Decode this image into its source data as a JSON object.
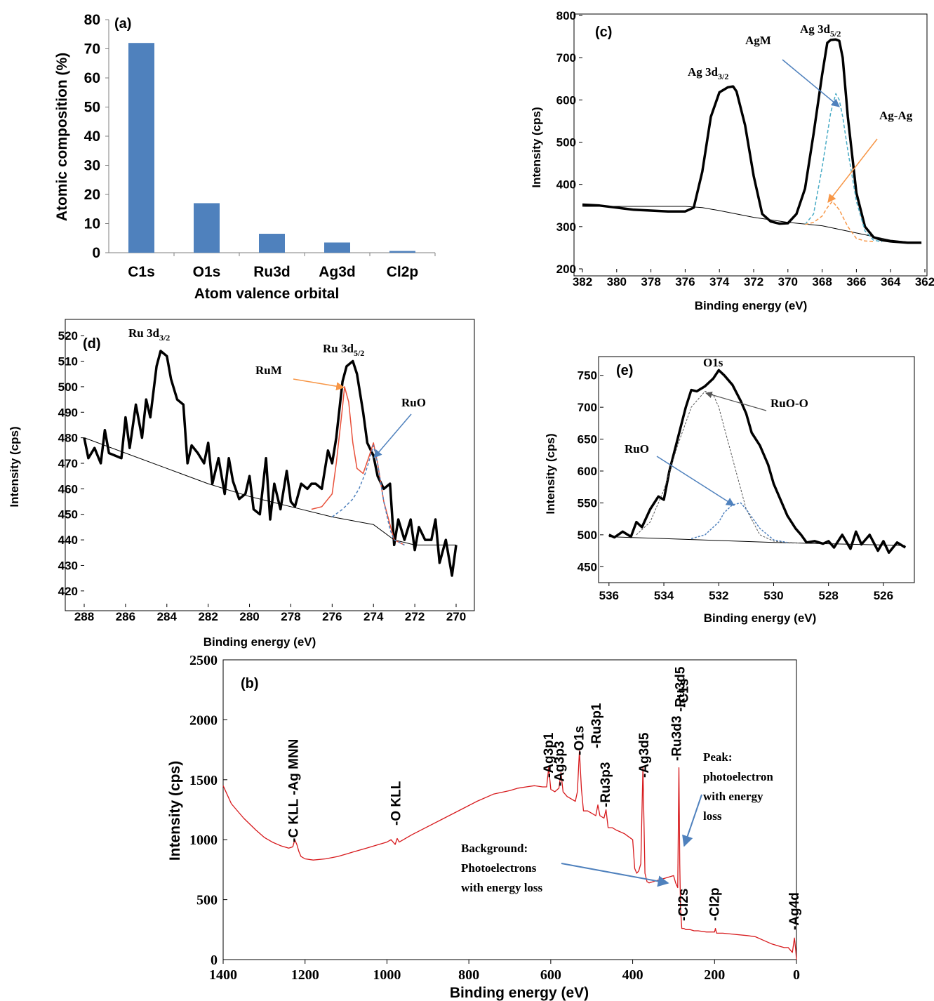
{
  "chart_data": [
    {
      "panel": "(a)",
      "type": "bar",
      "categories": [
        "C1s",
        "O1s",
        "Ru3d",
        "Ag3d",
        "Cl2p"
      ],
      "values": [
        72,
        17,
        6.5,
        3.5,
        0.6
      ],
      "xlabel": "Atom valence orbital",
      "ylabel": "Atomic composition (%)",
      "ylim": [
        0,
        80
      ],
      "yticks": [
        "0",
        "10",
        "20",
        "30",
        "40",
        "50",
        "60",
        "70",
        "80"
      ],
      "colors": {
        "bar": "#4f81bd"
      }
    },
    {
      "panel": "(c)",
      "type": "line",
      "xlabel": "Binding energy (eV)",
      "ylabel": "Intensity (cps)",
      "xlim": [
        382,
        362
      ],
      "ylim": [
        200,
        800
      ],
      "xticks": [
        "382",
        "380",
        "378",
        "376",
        "374",
        "372",
        "370",
        "368",
        "366",
        "364",
        "362"
      ],
      "yticks": [
        "200",
        "300",
        "400",
        "500",
        "600",
        "700",
        "800"
      ],
      "annotations": {
        "peak1_main": "Ag 3d",
        "peak1_sub": "3/2",
        "peak2_main": "Ag 3d",
        "peak2_sub": "5/2",
        "agm": "AgM",
        "agag": "Ag-Ag"
      },
      "series": [
        {
          "role": "data",
          "x": [
            382,
            381,
            380,
            379,
            378,
            377,
            376,
            375.5,
            375,
            374.5,
            374,
            373.5,
            373.2,
            373,
            372.5,
            372,
            371.5,
            371,
            370.5,
            370,
            369.5,
            369,
            368.5,
            368,
            367.7,
            367.5,
            367.2,
            367,
            366.8,
            366.5,
            366,
            365.5,
            365,
            364.5,
            364,
            363,
            362.2
          ],
          "y": [
            352,
            350,
            345,
            340,
            338,
            336,
            336,
            345,
            430,
            560,
            618,
            630,
            632,
            620,
            540,
            420,
            330,
            312,
            307,
            308,
            330,
            390,
            520,
            660,
            735,
            742,
            743,
            740,
            700,
            560,
            380,
            300,
            275,
            268,
            265,
            262,
            262
          ]
        },
        {
          "role": "background",
          "x": [
            382,
            378,
            376,
            375,
            374,
            372,
            370,
            368,
            366,
            364,
            362.2
          ],
          "y": [
            348,
            348,
            348,
            345,
            338,
            322,
            310,
            302,
            285,
            268,
            260
          ]
        },
        {
          "role": "fit-AgM",
          "x": [
            369,
            368.5,
            368,
            367.5,
            367.2,
            367,
            366.8,
            366.5,
            366,
            365.5,
            365,
            364.5
          ],
          "y": [
            305,
            330,
            440,
            570,
            615,
            600,
            560,
            480,
            360,
            290,
            268,
            264
          ]
        },
        {
          "role": "fit-Ag-Ag",
          "x": [
            369,
            368.5,
            368,
            367.7,
            367.4,
            367,
            366.5,
            366,
            365.5,
            365
          ],
          "y": [
            305,
            310,
            325,
            345,
            360,
            340,
            300,
            272,
            266,
            265
          ]
        }
      ],
      "colors": {
        "data": "#000000",
        "agm": "#4bacc6",
        "agag": "#f79646"
      }
    },
    {
      "panel": "(d)",
      "type": "line",
      "xlabel": "Binding energy (eV)",
      "ylabel": "Intensity (cps)",
      "xlim": [
        288,
        270
      ],
      "ylim": [
        415,
        525
      ],
      "xticks": [
        "288",
        "286",
        "284",
        "282",
        "280",
        "278",
        "276",
        "274",
        "272",
        "270"
      ],
      "yticks": [
        "420",
        "430",
        "440",
        "450",
        "460",
        "470",
        "480",
        "490",
        "500",
        "510",
        "520"
      ],
      "annotations": {
        "peak1_main": "Ru 3d",
        "peak1_sub": "3/2",
        "peak2_main": "Ru 3d",
        "peak2_sub": "5/2",
        "rum": "RuM",
        "ruo": "RuO"
      },
      "series": [
        {
          "role": "data",
          "x": [
            288,
            287.8,
            287.5,
            287.2,
            287,
            286.8,
            286.5,
            286.2,
            286,
            285.8,
            285.5,
            285.2,
            285,
            284.8,
            284.5,
            284.3,
            284,
            283.8,
            283.5,
            283.2,
            283,
            282.8,
            282.5,
            282.2,
            282,
            281.8,
            281.5,
            281.2,
            281,
            280.8,
            280.5,
            280.2,
            280,
            279.8,
            279.5,
            279.2,
            279,
            278.8,
            278.5,
            278.2,
            278,
            277.8,
            277.5,
            277.2,
            277,
            276.8,
            276.5,
            276.2,
            276,
            275.8,
            275.5,
            275.3,
            275,
            274.8,
            274.5,
            274.3,
            274,
            273.8,
            273.5,
            273.2,
            273,
            272.8,
            272.5,
            272.2,
            272,
            271.8,
            271.5,
            271.2,
            271,
            270.8,
            270.5,
            270.2,
            270
          ],
          "y": [
            480,
            472,
            476,
            470,
            483,
            474,
            473,
            472,
            488,
            476,
            493,
            480,
            495,
            488,
            508,
            514,
            512,
            503,
            495,
            493,
            470,
            477,
            474,
            470,
            478,
            462,
            472,
            458,
            472,
            463,
            456,
            458,
            465,
            452,
            450,
            472,
            448,
            462,
            452,
            467,
            455,
            453,
            462,
            460,
            462,
            462,
            460,
            475,
            470,
            480,
            502,
            508,
            510,
            505,
            490,
            478,
            473,
            465,
            460,
            462,
            438,
            448,
            440,
            448,
            436,
            445,
            440,
            440,
            448,
            431,
            440,
            426,
            438
          ]
        },
        {
          "role": "background",
          "x": [
            288,
            286,
            284,
            282,
            280,
            278,
            276,
            274,
            273,
            272,
            270
          ],
          "y": [
            480,
            474,
            468,
            462,
            457,
            453,
            449,
            446,
            440,
            438,
            438
          ]
        },
        {
          "role": "fit-RuM",
          "x": [
            277,
            276.5,
            276,
            275.8,
            275.5,
            275.4,
            275.2,
            275,
            274.8,
            274.5,
            274.2,
            274,
            273.8,
            273.5,
            273,
            272.5
          ],
          "y": [
            452,
            453,
            458,
            470,
            492,
            500,
            494,
            478,
            468,
            466,
            473,
            478,
            470,
            455,
            440,
            438
          ]
        },
        {
          "role": "fit-RuO",
          "x": [
            276,
            275.5,
            275,
            274.7,
            274.4,
            274.1,
            274,
            273.8,
            273.5,
            273.2,
            273,
            272.5
          ],
          "y": [
            449,
            452,
            456,
            460,
            466,
            474,
            477,
            470,
            455,
            444,
            440,
            438
          ]
        }
      ],
      "colors": {
        "data": "#000000",
        "rum": "#e8503a",
        "ruo": "#4f81bd"
      }
    },
    {
      "panel": "(e)",
      "type": "line",
      "xlabel": "Binding energy (eV)",
      "ylabel": "Intensity (cps)",
      "xlim": [
        536.2,
        525
      ],
      "ylim": [
        425,
        775
      ],
      "xticks": [
        "536",
        "534",
        "532",
        "530",
        "528",
        "526"
      ],
      "yticks": [
        "450",
        "500",
        "550",
        "600",
        "650",
        "700",
        "750"
      ],
      "annotations": {
        "o1s": "O1s",
        "ruoo": "RuO-O",
        "ruo": "RuO"
      },
      "series": [
        {
          "role": "data",
          "x": [
            536,
            535.8,
            535.5,
            535.2,
            535,
            534.8,
            534.5,
            534.2,
            534,
            533.8,
            533.5,
            533.2,
            533,
            532.8,
            532.5,
            532.2,
            532,
            531.8,
            531.5,
            531.2,
            531,
            530.8,
            530.5,
            530.2,
            530,
            529.8,
            529.5,
            529.2,
            529,
            528.8,
            528.5,
            528.2,
            528,
            527.8,
            527.5,
            527.2,
            527,
            526.8,
            526.5,
            526.2,
            526,
            525.8,
            525.5,
            525.2
          ],
          "y": [
            500,
            496,
            505,
            497,
            520,
            512,
            540,
            560,
            555,
            600,
            650,
            700,
            727,
            725,
            733,
            745,
            758,
            750,
            735,
            710,
            690,
            660,
            640,
            610,
            580,
            560,
            530,
            510,
            500,
            488,
            490,
            486,
            490,
            480,
            500,
            478,
            505,
            485,
            500,
            475,
            490,
            472,
            488,
            480
          ]
        },
        {
          "role": "background",
          "x": [
            536,
            534,
            532,
            530,
            528,
            526,
            525.2
          ],
          "y": [
            497,
            494,
            491,
            488,
            486,
            484,
            483
          ]
        },
        {
          "role": "fit-RuO-O",
          "x": [
            535,
            534.5,
            534,
            533.5,
            533,
            532.5,
            532.2,
            532,
            531.5,
            531,
            530.5,
            530,
            529.5,
            529
          ],
          "y": [
            500,
            520,
            570,
            640,
            700,
            725,
            720,
            700,
            620,
            540,
            500,
            490,
            488,
            487
          ]
        },
        {
          "role": "fit-RuO",
          "x": [
            533,
            532.5,
            532,
            531.8,
            531.5,
            531.2,
            531,
            530.5,
            530,
            529.5
          ],
          "y": [
            494,
            500,
            520,
            535,
            547,
            550,
            540,
            510,
            492,
            488
          ]
        }
      ],
      "colors": {
        "data": "#000000",
        "ruoo": "#555555",
        "ruo": "#4f81bd"
      }
    },
    {
      "panel": "(b)",
      "type": "line",
      "xlabel": "Binding energy (eV)",
      "ylabel": "Intensity (cps)",
      "xlim": [
        1400,
        0
      ],
      "ylim": [
        0,
        2500
      ],
      "xticks": [
        "1400",
        "1200",
        "1000",
        "800",
        "600",
        "400",
        "200",
        "0"
      ],
      "yticks": [
        "0",
        "500",
        "1000",
        "1500",
        "2000",
        "2500"
      ],
      "series": [
        {
          "role": "survey",
          "x": [
            1400,
            1380,
            1350,
            1320,
            1300,
            1280,
            1260,
            1240,
            1230,
            1225,
            1220,
            1215,
            1210,
            1200,
            1180,
            1150,
            1120,
            1100,
            1080,
            1050,
            1020,
            1000,
            990,
            980,
            975,
            970,
            960,
            940,
            900,
            860,
            820,
            780,
            740,
            700,
            680,
            660,
            640,
            620,
            610,
            605,
            600,
            595,
            590,
            580,
            575,
            570,
            560,
            550,
            540,
            535,
            530,
            525,
            520,
            510,
            500,
            490,
            485,
            480,
            470,
            465,
            460,
            450,
            440,
            420,
            400,
            395,
            390,
            385,
            380,
            375,
            370,
            365,
            360,
            350,
            340,
            320,
            300,
            295,
            290,
            287,
            285,
            283,
            280,
            275,
            270,
            260,
            250,
            240,
            220,
            200,
            198,
            195,
            180,
            150,
            120,
            100,
            80,
            60,
            40,
            30,
            20,
            10,
            5,
            2,
            0
          ],
          "y": [
            1450,
            1300,
            1180,
            1080,
            1020,
            980,
            950,
            930,
            940,
            1000,
            960,
            900,
            860,
            840,
            830,
            840,
            860,
            880,
            900,
            930,
            960,
            980,
            1000,
            960,
            1010,
            980,
            1000,
            1040,
            1110,
            1180,
            1250,
            1320,
            1380,
            1410,
            1430,
            1440,
            1450,
            1440,
            1440,
            1600,
            1420,
            1410,
            1400,
            1430,
            1560,
            1400,
            1360,
            1340,
            1320,
            1400,
            1740,
            1420,
            1240,
            1240,
            1220,
            1200,
            1290,
            1200,
            1180,
            1250,
            1100,
            1100,
            1080,
            1050,
            1000,
            760,
            720,
            740,
            800,
            1600,
            720,
            650,
            640,
            650,
            660,
            680,
            700,
            640,
            600,
            1600,
            800,
            420,
            260,
            260,
            250,
            250,
            240,
            240,
            230,
            230,
            260,
            220,
            220,
            210,
            200,
            190,
            160,
            130,
            110,
            100,
            100,
            60,
            180,
            90,
            0
          ]
        }
      ],
      "peaks": [
        "C KLL -Ag MNN",
        "O KLL",
        "Ag3p1",
        "Ag3p3",
        "O1s",
        "Ru3p1",
        "Ru3p3",
        "Ag3d5",
        "Ru3d3",
        "Ru3d5",
        "C1s",
        "Cl2s",
        "Cl2p",
        "Ag4d"
      ],
      "annotations": {
        "peak_lines": [
          "Peak:",
          "photoelectron",
          "with energy",
          "loss"
        ],
        "bg_lines": [
          "Background:",
          "Photoelectrons",
          "with energy loss"
        ]
      },
      "colors": {
        "survey": "#d7191c",
        "arrow": "#4f81bd"
      }
    }
  ]
}
